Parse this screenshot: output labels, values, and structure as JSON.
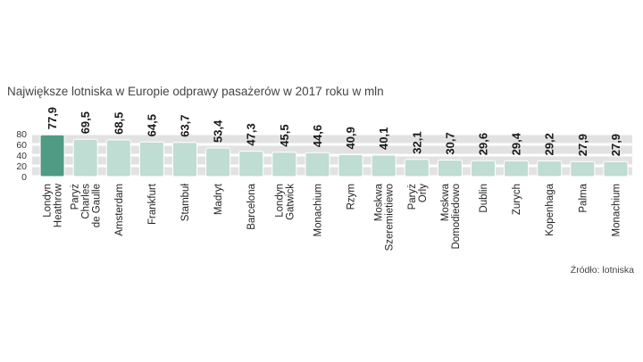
{
  "chart_data": {
    "type": "bar",
    "title": "Największe lotniska w Europie odprawy pasażerów w 2017 roku w mln",
    "source": "Źródło: lotniska",
    "xlabel": "",
    "ylabel": "",
    "ylim": [
      0,
      80
    ],
    "yticks": [
      "80",
      "60",
      "40",
      "20",
      "0"
    ],
    "yticks_values": [
      80,
      60,
      40,
      20,
      0
    ],
    "grid": true,
    "legend": "none",
    "highlight_index": 0,
    "colors": {
      "bar": "#bfddd2",
      "bar_highlight": "#4f9b84",
      "grid_band": "#e2e2e2",
      "background": "#ffffff"
    },
    "categories": [
      [
        "Londyn",
        "Heathrow"
      ],
      [
        "Paryż",
        "Charles",
        "de Gaulle"
      ],
      [
        "Amsterdam"
      ],
      [
        "Frankfurt"
      ],
      [
        "Stambuł"
      ],
      [
        "Madryt"
      ],
      [
        "Barcelona"
      ],
      [
        "Londyn",
        "Gatwick"
      ],
      [
        "Monachium"
      ],
      [
        "Rzym"
      ],
      [
        "Moskwa",
        "Szeremietiewo"
      ],
      [
        "Paryż",
        "Orly"
      ],
      [
        "Moskwa",
        "Domodiedowo"
      ],
      [
        "Dublin"
      ],
      [
        "Zurych"
      ],
      [
        "Kopenhaga"
      ],
      [
        "Palma"
      ],
      [
        "Monachium"
      ]
    ],
    "values": [
      77.9,
      69.5,
      68.5,
      64.5,
      63.7,
      53.4,
      47.3,
      45.5,
      44.6,
      40.9,
      40.1,
      32.1,
      30.7,
      29.6,
      29.4,
      29.2,
      27.9,
      27.9
    ],
    "value_labels": [
      "77,9",
      "69,5",
      "68,5",
      "64,5",
      "63,7",
      "53,4",
      "47,3",
      "45,5",
      "44,6",
      "40,9",
      "40,1",
      "32,1",
      "30,7",
      "29,6",
      "29,4",
      "29,2",
      "27,9",
      "27,9"
    ]
  }
}
